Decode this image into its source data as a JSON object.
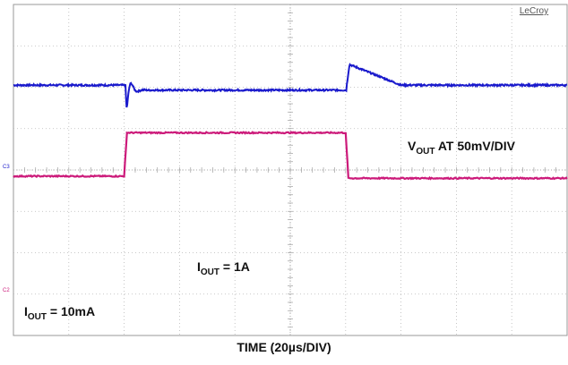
{
  "chart_data": {
    "type": "line",
    "brand": "LeCroy",
    "xlabel": "TIME (20µs/DIV)",
    "x_divisions": 10,
    "y_divisions": 8,
    "grid": true,
    "x_unit": "div",
    "channels": [
      {
        "id": "C3",
        "color": "#1a1acc",
        "label": "VOUT AT 50mV/DIV",
        "label_main": "V",
        "label_sub": "OUT",
        "label_rest": " AT 50mV/DIV",
        "baseline_div": 2.05,
        "events": [
          {
            "x_div": 2.03,
            "type": "undershoot",
            "peak_div": -0.75
          },
          {
            "x_div": 6.02,
            "type": "overshoot",
            "peak_div": 0.5,
            "recover_x_div": 7.0
          }
        ]
      },
      {
        "id": "C2",
        "color": "#cc1a7a",
        "labels": [
          {
            "main": "I",
            "sub": "OUT",
            "rest": " = 10mA"
          },
          {
            "main": "I",
            "sub": "OUT",
            "rest": " = 1A"
          }
        ],
        "x": [
          0,
          2.0,
          2.05,
          6.0,
          6.05,
          10
        ],
        "y_div": [
          -0.15,
          -0.15,
          0.9,
          0.9,
          -0.2,
          -0.2
        ]
      }
    ]
  }
}
